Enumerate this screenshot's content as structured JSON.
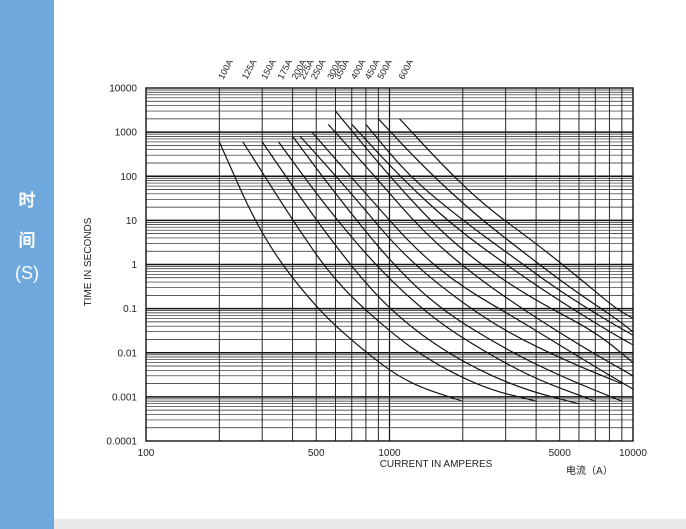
{
  "side_label": {
    "line1": "时",
    "line2": "间",
    "line3": "(S)"
  },
  "chart_data": {
    "type": "line",
    "xscale": "log",
    "yscale": "log",
    "xlim": [
      100,
      10000
    ],
    "ylim": [
      0.0001,
      10000
    ],
    "grid": true,
    "xlabel": "CURRENT IN AMPERES",
    "xlabel_cn": "电流（A）",
    "ylabel": "TIME IN SECONDS",
    "x_ticks": [
      "100",
      "500",
      "1000",
      "5000",
      "10000"
    ],
    "x_tick_values": [
      100,
      500,
      1000,
      5000,
      10000
    ],
    "y_ticks": [
      "10000",
      "1000",
      "100",
      "10",
      "1",
      "0.1",
      "0.01",
      "0.001",
      "0.0001"
    ],
    "y_tick_values": [
      10000,
      1000,
      100,
      10,
      1,
      0.1,
      0.01,
      0.001,
      0.0001
    ],
    "series": [
      {
        "name": "100A",
        "x": [
          200,
          300,
          500,
          800,
          1200,
          2000
        ],
        "y": [
          600,
          4,
          0.1,
          0.01,
          0.002,
          0.0008
        ]
      },
      {
        "name": "125A",
        "x": [
          250,
          400,
          600,
          1000,
          1500,
          2500,
          4000
        ],
        "y": [
          600,
          10,
          0.4,
          0.03,
          0.006,
          0.0015,
          0.0008
        ]
      },
      {
        "name": "150A",
        "x": [
          300,
          500,
          800,
          1200,
          2000,
          3500,
          6000
        ],
        "y": [
          600,
          10,
          0.35,
          0.04,
          0.006,
          0.0015,
          0.0007
        ]
      },
      {
        "name": "175A",
        "x": [
          350,
          550,
          900,
          1500,
          2500,
          4000,
          7000
        ],
        "y": [
          600,
          20,
          0.8,
          0.06,
          0.01,
          0.0025,
          0.0008
        ]
      },
      {
        "name": "200A",
        "x": [
          400,
          600,
          1000,
          1600,
          3000,
          5000,
          9000
        ],
        "y": [
          800,
          40,
          1.2,
          0.1,
          0.012,
          0.003,
          0.0008
        ]
      },
      {
        "name": "225A",
        "x": [
          430,
          700,
          1100,
          1800,
          3000,
          5500,
          9000
        ],
        "y": [
          800,
          40,
          2,
          0.2,
          0.03,
          0.006,
          0.002
        ]
      },
      {
        "name": "250A",
        "x": [
          480,
          800,
          1300,
          2000,
          3500,
          6000,
          10000
        ],
        "y": [
          1000,
          40,
          2,
          0.3,
          0.05,
          0.008,
          0.0015
        ]
      },
      {
        "name": "300A",
        "x": [
          560,
          900,
          1400,
          2200,
          3500,
          6000,
          10000
        ],
        "y": [
          1500,
          80,
          5,
          0.6,
          0.1,
          0.015,
          0.003
        ]
      },
      {
        "name": "350A",
        "x": [
          600,
          1000,
          1600,
          2500,
          4000,
          7000,
          10000
        ],
        "y": [
          3000,
          100,
          6,
          0.8,
          0.15,
          0.03,
          0.006
        ]
      },
      {
        "name": "400A",
        "x": [
          700,
          1100,
          1800,
          3000,
          5000,
          8000,
          10000
        ],
        "y": [
          1500,
          100,
          8,
          1,
          0.15,
          0.03,
          0.015
        ]
      },
      {
        "name": "450A",
        "x": [
          800,
          1200,
          2000,
          3200,
          5000,
          8000,
          10000
        ],
        "y": [
          1500,
          100,
          10,
          1.5,
          0.25,
          0.05,
          0.025
        ]
      },
      {
        "name": "500A",
        "x": [
          900,
          1400,
          2200,
          3500,
          5500,
          8500,
          10000
        ],
        "y": [
          2000,
          150,
          15,
          2,
          0.3,
          0.06,
          0.03
        ]
      },
      {
        "name": "600A",
        "x": [
          1100,
          1700,
          2500,
          4000,
          6000,
          8500,
          10000
        ],
        "y": [
          2000,
          150,
          20,
          3,
          0.5,
          0.1,
          0.06
        ]
      }
    ]
  }
}
